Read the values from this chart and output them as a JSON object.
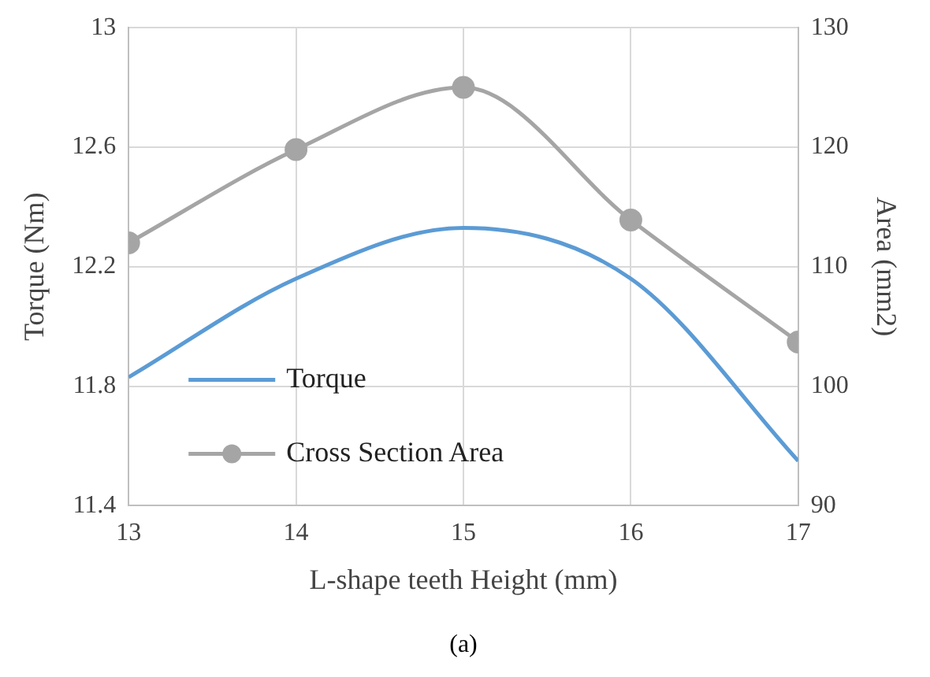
{
  "chart_data": {
    "type": "line",
    "xlabel": "L-shape teeth Height (mm)",
    "ylabel": "Torque (Nm)",
    "y2label": "Area (mm2)",
    "x": [
      13,
      14,
      15,
      16,
      17
    ],
    "xlim": [
      13,
      17
    ],
    "xticks": [
      13,
      14,
      15,
      16,
      17
    ],
    "ylim": [
      11.4,
      13
    ],
    "yticks": [
      11.4,
      11.8,
      12.2,
      12.6,
      13
    ],
    "y2lim": [
      90,
      130
    ],
    "y2ticks": [
      90,
      100,
      110,
      120,
      130
    ],
    "series": [
      {
        "name": "Torque",
        "color": "#5b9bd5",
        "values": [
          11.83,
          12.16,
          12.33,
          12.16,
          11.55
        ],
        "marker": "none"
      },
      {
        "name": "Cross Section Area",
        "color": "#a5a5a5",
        "values": [
          112,
          119.8,
          125,
          113.9,
          103.7
        ],
        "axis": "y2",
        "marker": "circle"
      }
    ],
    "grid": true,
    "legend": "bottom left",
    "annotations": [
      "(a)"
    ]
  }
}
